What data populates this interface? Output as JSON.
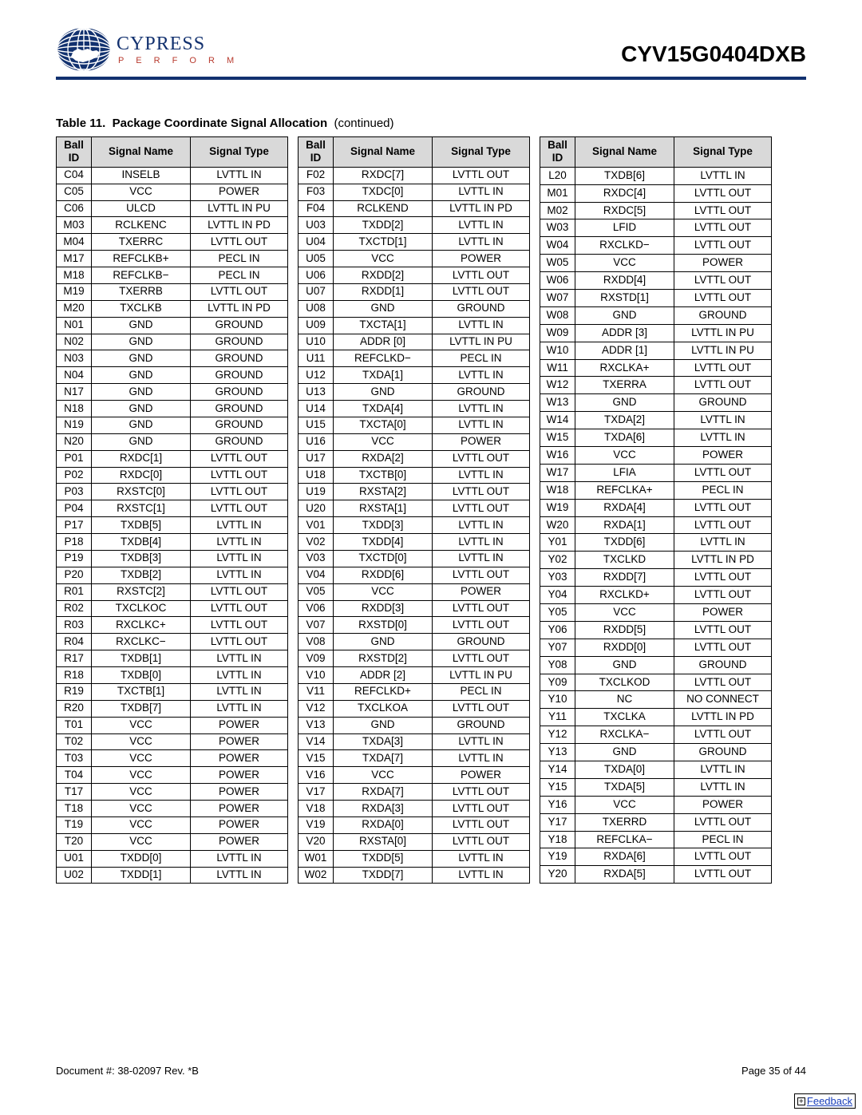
{
  "header": {
    "brand": "CYPRESS",
    "tagline": "P E R F O R M",
    "part_number": "CYV15G0404DXB"
  },
  "table": {
    "number": "Table 11.",
    "title": "Package Coordinate Signal Allocation",
    "continued": "(continued)",
    "columns": {
      "ball": "Ball ID",
      "name": "Signal Name",
      "type": "Signal Type"
    },
    "header_bg": "#d9d9d9",
    "groups": [
      [
        {
          "id": "C04",
          "name": "INSELB",
          "type": "LVTTL IN"
        },
        {
          "id": "C05",
          "name": "VCC",
          "type": "POWER"
        },
        {
          "id": "C06",
          "name": "ULCD",
          "type": "LVTTL IN PU"
        },
        {
          "id": "M03",
          "name": "RCLKENC",
          "type": "LVTTL IN PD"
        },
        {
          "id": "M04",
          "name": "TXERRC",
          "type": "LVTTL OUT"
        },
        {
          "id": "M17",
          "name": "REFCLKB+",
          "type": "PECL IN"
        },
        {
          "id": "M18",
          "name": "REFCLKB−",
          "type": "PECL IN"
        },
        {
          "id": "M19",
          "name": "TXERRB",
          "type": "LVTTL OUT"
        },
        {
          "id": "M20",
          "name": "TXCLKB",
          "type": "LVTTL IN PD"
        },
        {
          "id": "N01",
          "name": "GND",
          "type": "GROUND"
        },
        {
          "id": "N02",
          "name": "GND",
          "type": "GROUND"
        },
        {
          "id": "N03",
          "name": "GND",
          "type": "GROUND"
        },
        {
          "id": "N04",
          "name": "GND",
          "type": "GROUND"
        },
        {
          "id": "N17",
          "name": "GND",
          "type": "GROUND"
        },
        {
          "id": "N18",
          "name": "GND",
          "type": "GROUND"
        },
        {
          "id": "N19",
          "name": "GND",
          "type": "GROUND"
        },
        {
          "id": "N20",
          "name": "GND",
          "type": "GROUND"
        },
        {
          "id": "P01",
          "name": "RXDC[1]",
          "type": "LVTTL OUT"
        },
        {
          "id": "P02",
          "name": "RXDC[0]",
          "type": "LVTTL OUT"
        },
        {
          "id": "P03",
          "name": "RXSTC[0]",
          "type": "LVTTL OUT"
        },
        {
          "id": "P04",
          "name": "RXSTC[1]",
          "type": "LVTTL OUT"
        },
        {
          "id": "P17",
          "name": "TXDB[5]",
          "type": "LVTTL IN"
        },
        {
          "id": "P18",
          "name": "TXDB[4]",
          "type": "LVTTL IN"
        },
        {
          "id": "P19",
          "name": "TXDB[3]",
          "type": "LVTTL IN"
        },
        {
          "id": "P20",
          "name": "TXDB[2]",
          "type": "LVTTL IN"
        },
        {
          "id": "R01",
          "name": "RXSTC[2]",
          "type": "LVTTL OUT"
        },
        {
          "id": "R02",
          "name": "TXCLKOC",
          "type": "LVTTL OUT"
        },
        {
          "id": "R03",
          "name": "RXCLKC+",
          "type": "LVTTL OUT"
        },
        {
          "id": "R04",
          "name": "RXCLKC−",
          "type": "LVTTL OUT"
        },
        {
          "id": "R17",
          "name": "TXDB[1]",
          "type": "LVTTL IN"
        },
        {
          "id": "R18",
          "name": "TXDB[0]",
          "type": "LVTTL IN"
        },
        {
          "id": "R19",
          "name": "TXCTB[1]",
          "type": "LVTTL IN"
        },
        {
          "id": "R20",
          "name": "TXDB[7]",
          "type": "LVTTL IN"
        },
        {
          "id": "T01",
          "name": "VCC",
          "type": "POWER"
        },
        {
          "id": "T02",
          "name": "VCC",
          "type": "POWER"
        },
        {
          "id": "T03",
          "name": "VCC",
          "type": "POWER"
        },
        {
          "id": "T04",
          "name": "VCC",
          "type": "POWER"
        },
        {
          "id": "T17",
          "name": "VCC",
          "type": "POWER"
        },
        {
          "id": "T18",
          "name": "VCC",
          "type": "POWER"
        },
        {
          "id": "T19",
          "name": "VCC",
          "type": "POWER"
        },
        {
          "id": "T20",
          "name": "VCC",
          "type": "POWER"
        },
        {
          "id": "U01",
          "name": "TXDD[0]",
          "type": "LVTTL IN"
        },
        {
          "id": "U02",
          "name": "TXDD[1]",
          "type": "LVTTL IN"
        }
      ],
      [
        {
          "id": "F02",
          "name": "RXDC[7]",
          "type": "LVTTL OUT"
        },
        {
          "id": "F03",
          "name": "TXDC[0]",
          "type": "LVTTL IN"
        },
        {
          "id": "F04",
          "name": "RCLKEND",
          "type": "LVTTL IN PD"
        },
        {
          "id": "U03",
          "name": "TXDD[2]",
          "type": "LVTTL IN"
        },
        {
          "id": "U04",
          "name": "TXCTD[1]",
          "type": "LVTTL IN"
        },
        {
          "id": "U05",
          "name": "VCC",
          "type": "POWER"
        },
        {
          "id": "U06",
          "name": "RXDD[2]",
          "type": "LVTTL OUT"
        },
        {
          "id": "U07",
          "name": "RXDD[1]",
          "type": "LVTTL OUT"
        },
        {
          "id": "U08",
          "name": "GND",
          "type": "GROUND"
        },
        {
          "id": "U09",
          "name": "TXCTA[1]",
          "type": "LVTTL IN"
        },
        {
          "id": "U10",
          "name": "ADDR [0]",
          "type": "LVTTL IN PU"
        },
        {
          "id": "U11",
          "name": "REFCLKD−",
          "type": "PECL IN"
        },
        {
          "id": "U12",
          "name": "TXDA[1]",
          "type": "LVTTL IN"
        },
        {
          "id": "U13",
          "name": "GND",
          "type": "GROUND"
        },
        {
          "id": "U14",
          "name": "TXDA[4]",
          "type": "LVTTL IN"
        },
        {
          "id": "U15",
          "name": "TXCTA[0]",
          "type": "LVTTL IN"
        },
        {
          "id": "U16",
          "name": "VCC",
          "type": "POWER"
        },
        {
          "id": "U17",
          "name": "RXDA[2]",
          "type": "LVTTL OUT"
        },
        {
          "id": "U18",
          "name": "TXCTB[0]",
          "type": "LVTTL IN"
        },
        {
          "id": "U19",
          "name": "RXSTA[2]",
          "type": "LVTTL OUT"
        },
        {
          "id": "U20",
          "name": "RXSTA[1]",
          "type": "LVTTL OUT"
        },
        {
          "id": "V01",
          "name": "TXDD[3]",
          "type": "LVTTL IN"
        },
        {
          "id": "V02",
          "name": "TXDD[4]",
          "type": "LVTTL IN"
        },
        {
          "id": "V03",
          "name": "TXCTD[0]",
          "type": "LVTTL IN"
        },
        {
          "id": "V04",
          "name": "RXDD[6]",
          "type": "LVTTL OUT"
        },
        {
          "id": "V05",
          "name": "VCC",
          "type": "POWER"
        },
        {
          "id": "V06",
          "name": "RXDD[3]",
          "type": "LVTTL OUT"
        },
        {
          "id": "V07",
          "name": "RXSTD[0]",
          "type": "LVTTL OUT"
        },
        {
          "id": "V08",
          "name": "GND",
          "type": "GROUND"
        },
        {
          "id": "V09",
          "name": "RXSTD[2]",
          "type": "LVTTL OUT"
        },
        {
          "id": "V10",
          "name": "ADDR [2]",
          "type": "LVTTL IN PU"
        },
        {
          "id": "V11",
          "name": "REFCLKD+",
          "type": "PECL IN"
        },
        {
          "id": "V12",
          "name": "TXCLKOA",
          "type": "LVTTL OUT"
        },
        {
          "id": "V13",
          "name": "GND",
          "type": "GROUND"
        },
        {
          "id": "V14",
          "name": "TXDA[3]",
          "type": "LVTTL IN"
        },
        {
          "id": "V15",
          "name": "TXDA[7]",
          "type": "LVTTL IN"
        },
        {
          "id": "V16",
          "name": "VCC",
          "type": "POWER"
        },
        {
          "id": "V17",
          "name": "RXDA[7]",
          "type": "LVTTL OUT"
        },
        {
          "id": "V18",
          "name": "RXDA[3]",
          "type": "LVTTL OUT"
        },
        {
          "id": "V19",
          "name": "RXDA[0]",
          "type": "LVTTL OUT"
        },
        {
          "id": "V20",
          "name": "RXSTA[0]",
          "type": "LVTTL OUT"
        },
        {
          "id": "W01",
          "name": "TXDD[5]",
          "type": "LVTTL IN"
        },
        {
          "id": "W02",
          "name": "TXDD[7]",
          "type": "LVTTL IN"
        }
      ],
      [
        {
          "id": "L20",
          "name": "TXDB[6]",
          "type": "LVTTL IN"
        },
        {
          "id": "M01",
          "name": "RXDC[4]",
          "type": "LVTTL OUT"
        },
        {
          "id": "M02",
          "name": "RXDC[5]",
          "type": "LVTTL OUT"
        },
        {
          "id": "W03",
          "name": "LFID",
          "type": "LVTTL OUT"
        },
        {
          "id": "W04",
          "name": "RXCLKD−",
          "type": "LVTTL OUT"
        },
        {
          "id": "W05",
          "name": "VCC",
          "type": "POWER"
        },
        {
          "id": "W06",
          "name": "RXDD[4]",
          "type": "LVTTL OUT"
        },
        {
          "id": "W07",
          "name": "RXSTD[1]",
          "type": "LVTTL OUT"
        },
        {
          "id": "W08",
          "name": "GND",
          "type": "GROUND"
        },
        {
          "id": "W09",
          "name": "ADDR [3]",
          "type": "LVTTL IN PU"
        },
        {
          "id": "W10",
          "name": "ADDR [1]",
          "type": "LVTTL IN PU"
        },
        {
          "id": "W11",
          "name": "RXCLKA+",
          "type": "LVTTL OUT"
        },
        {
          "id": "W12",
          "name": "TXERRA",
          "type": "LVTTL OUT"
        },
        {
          "id": "W13",
          "name": "GND",
          "type": "GROUND"
        },
        {
          "id": "W14",
          "name": "TXDA[2]",
          "type": "LVTTL IN"
        },
        {
          "id": "W15",
          "name": "TXDA[6]",
          "type": "LVTTL IN"
        },
        {
          "id": "W16",
          "name": "VCC",
          "type": "POWER"
        },
        {
          "id": "W17",
          "name": "LFIA",
          "type": "LVTTL OUT"
        },
        {
          "id": "W18",
          "name": "REFCLKA+",
          "type": "PECL IN"
        },
        {
          "id": "W19",
          "name": "RXDA[4]",
          "type": "LVTTL OUT"
        },
        {
          "id": "W20",
          "name": "RXDA[1]",
          "type": "LVTTL OUT"
        },
        {
          "id": "Y01",
          "name": "TXDD[6]",
          "type": "LVTTL IN"
        },
        {
          "id": "Y02",
          "name": "TXCLKD",
          "type": "LVTTL IN PD"
        },
        {
          "id": "Y03",
          "name": "RXDD[7]",
          "type": "LVTTL OUT"
        },
        {
          "id": "Y04",
          "name": "RXCLKD+",
          "type": "LVTTL OUT"
        },
        {
          "id": "Y05",
          "name": "VCC",
          "type": "POWER"
        },
        {
          "id": "Y06",
          "name": "RXDD[5]",
          "type": "LVTTL OUT"
        },
        {
          "id": "Y07",
          "name": "RXDD[0]",
          "type": "LVTTL OUT"
        },
        {
          "id": "Y08",
          "name": "GND",
          "type": "GROUND"
        },
        {
          "id": "Y09",
          "name": "TXCLKOD",
          "type": "LVTTL OUT"
        },
        {
          "id": "Y10",
          "name": "NC",
          "type": "NO CONNECT"
        },
        {
          "id": "Y11",
          "name": "TXCLKA",
          "type": "LVTTL IN PD"
        },
        {
          "id": "Y12",
          "name": "RXCLKA−",
          "type": "LVTTL OUT"
        },
        {
          "id": "Y13",
          "name": "GND",
          "type": "GROUND"
        },
        {
          "id": "Y14",
          "name": "TXDA[0]",
          "type": "LVTTL IN"
        },
        {
          "id": "Y15",
          "name": "TXDA[5]",
          "type": "LVTTL IN"
        },
        {
          "id": "Y16",
          "name": "VCC",
          "type": "POWER"
        },
        {
          "id": "Y17",
          "name": "TXERRD",
          "type": "LVTTL OUT"
        },
        {
          "id": "Y18",
          "name": "REFCLKA−",
          "type": "PECL IN"
        },
        {
          "id": "Y19",
          "name": "RXDA[6]",
          "type": "LVTTL OUT"
        },
        {
          "id": "Y20",
          "name": "RXDA[5]",
          "type": "LVTTL OUT"
        }
      ]
    ]
  },
  "footer": {
    "doc": "Document #: 38-02097 Rev. *B",
    "page": "Page 35 of 44",
    "feedback": "Feedback"
  },
  "colors": {
    "accent": "#12316f",
    "tagline": "#b83a2e",
    "header_row": "#d9d9d9"
  }
}
